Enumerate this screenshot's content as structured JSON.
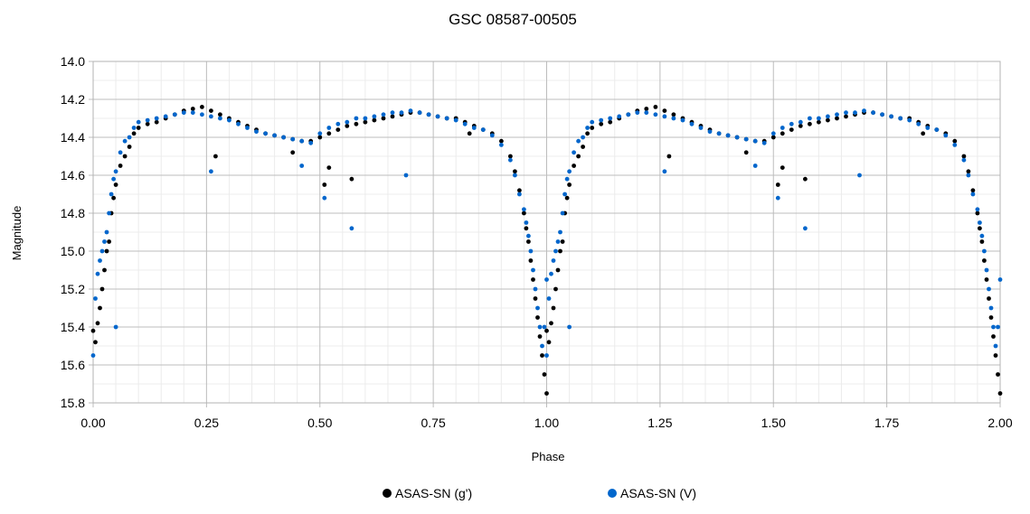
{
  "chart_data": {
    "type": "scatter",
    "title": "GSC 08587-00505",
    "xlabel": "Phase",
    "ylabel": "Magnitude",
    "xlim": [
      0.0,
      2.0
    ],
    "ylim": [
      14.0,
      15.8
    ],
    "y_inverted": true,
    "grid": true,
    "legend_position": "bottom",
    "x_ticks": [
      "0.00",
      "0.25",
      "0.50",
      "0.75",
      "1.00",
      "1.25",
      "1.50",
      "1.75",
      "2.00"
    ],
    "y_ticks": [
      "14.0",
      "14.2",
      "14.4",
      "14.6",
      "14.8",
      "15.0",
      "15.2",
      "15.4",
      "15.6",
      "15.8"
    ],
    "series": [
      {
        "name": "ASAS-SN (g')",
        "color": "#000000",
        "x": [
          0.0,
          0.005,
          0.01,
          0.015,
          0.02,
          0.025,
          0.03,
          0.035,
          0.04,
          0.045,
          0.05,
          0.06,
          0.07,
          0.08,
          0.09,
          0.1,
          0.12,
          0.14,
          0.16,
          0.18,
          0.2,
          0.22,
          0.24,
          0.26,
          0.28,
          0.3,
          0.32,
          0.34,
          0.36,
          0.38,
          0.4,
          0.42,
          0.44,
          0.46,
          0.48,
          0.5,
          0.52,
          0.54,
          0.56,
          0.58,
          0.6,
          0.62,
          0.64,
          0.66,
          0.68,
          0.7,
          0.72,
          0.74,
          0.76,
          0.78,
          0.8,
          0.82,
          0.84,
          0.86,
          0.88,
          0.9,
          0.92,
          0.93,
          0.94,
          0.95,
          0.955,
          0.96,
          0.965,
          0.97,
          0.975,
          0.98,
          0.985,
          0.99,
          0.995,
          1.0,
          0.27,
          0.44,
          0.51,
          0.52,
          0.57,
          0.83
        ],
        "y": [
          15.42,
          15.48,
          15.38,
          15.3,
          15.2,
          15.1,
          15.0,
          14.95,
          14.8,
          14.72,
          14.65,
          14.55,
          14.5,
          14.45,
          14.38,
          14.35,
          14.33,
          14.32,
          14.3,
          14.28,
          14.26,
          14.25,
          14.24,
          14.26,
          14.28,
          14.3,
          14.32,
          14.34,
          14.36,
          14.38,
          14.39,
          14.4,
          14.41,
          14.42,
          14.42,
          14.4,
          14.38,
          14.36,
          14.34,
          14.33,
          14.32,
          14.31,
          14.3,
          14.29,
          14.28,
          14.27,
          14.27,
          14.28,
          14.29,
          14.3,
          14.3,
          14.32,
          14.34,
          14.36,
          14.38,
          14.42,
          14.5,
          14.58,
          14.68,
          14.8,
          14.88,
          14.95,
          15.05,
          15.15,
          15.25,
          15.35,
          15.45,
          15.55,
          15.65,
          15.75,
          14.5,
          14.48,
          14.65,
          14.56,
          14.62,
          14.38
        ]
      },
      {
        "name": "ASAS-SN (V)",
        "color": "#0066cc",
        "x": [
          0.0,
          0.005,
          0.01,
          0.015,
          0.02,
          0.025,
          0.03,
          0.035,
          0.04,
          0.045,
          0.05,
          0.06,
          0.07,
          0.08,
          0.09,
          0.1,
          0.12,
          0.14,
          0.16,
          0.18,
          0.2,
          0.22,
          0.24,
          0.26,
          0.28,
          0.3,
          0.32,
          0.34,
          0.36,
          0.38,
          0.4,
          0.42,
          0.44,
          0.46,
          0.48,
          0.5,
          0.52,
          0.54,
          0.56,
          0.58,
          0.6,
          0.62,
          0.64,
          0.66,
          0.68,
          0.7,
          0.72,
          0.74,
          0.76,
          0.78,
          0.8,
          0.82,
          0.84,
          0.86,
          0.88,
          0.9,
          0.92,
          0.93,
          0.94,
          0.95,
          0.955,
          0.96,
          0.965,
          0.97,
          0.975,
          0.98,
          0.985,
          0.99,
          0.995,
          1.0,
          0.26,
          0.46,
          0.51,
          0.57,
          0.69,
          0.05
        ],
        "y": [
          15.55,
          15.25,
          15.12,
          15.05,
          15.0,
          14.95,
          14.9,
          14.8,
          14.7,
          14.62,
          14.58,
          14.48,
          14.42,
          14.4,
          14.35,
          14.32,
          14.31,
          14.3,
          14.29,
          14.28,
          14.27,
          14.27,
          14.28,
          14.29,
          14.3,
          14.31,
          14.33,
          14.35,
          14.37,
          14.38,
          14.39,
          14.4,
          14.41,
          14.42,
          14.43,
          14.38,
          14.35,
          14.33,
          14.32,
          14.3,
          14.3,
          14.29,
          14.28,
          14.27,
          14.27,
          14.26,
          14.27,
          14.28,
          14.29,
          14.3,
          14.31,
          14.33,
          14.35,
          14.36,
          14.39,
          14.44,
          14.52,
          14.6,
          14.7,
          14.78,
          14.85,
          14.92,
          15.0,
          15.1,
          15.2,
          15.3,
          15.4,
          15.5,
          15.4,
          15.15,
          14.58,
          14.55,
          14.72,
          14.88,
          14.6,
          15.4
        ]
      }
    ]
  }
}
